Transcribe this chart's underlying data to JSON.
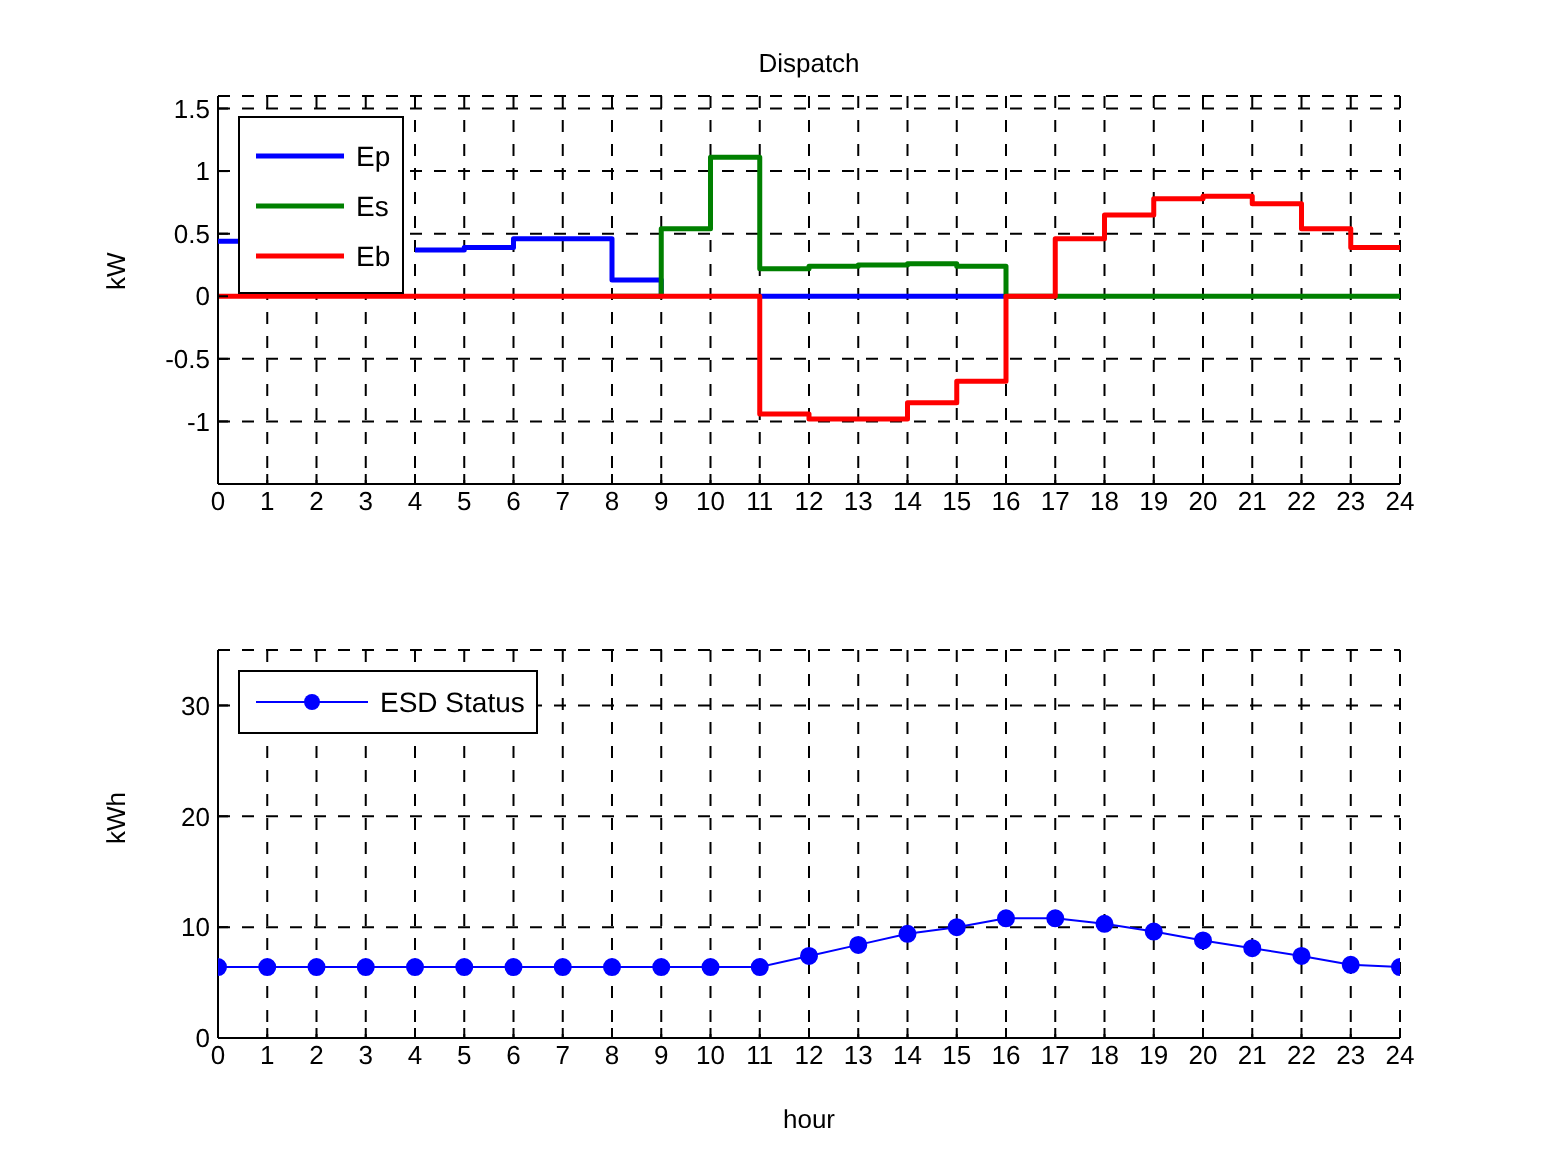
{
  "chart_data": [
    {
      "type": "step",
      "title": "Dispatch",
      "ylabel": "kW",
      "x": [
        0,
        1,
        2,
        3,
        4,
        5,
        6,
        7,
        8,
        9,
        10,
        11,
        12,
        13,
        14,
        15,
        16,
        17,
        18,
        19,
        20,
        21,
        22,
        23,
        24
      ],
      "series": [
        {
          "name": "Ep",
          "color": "#0000ff",
          "values": [
            0.44,
            null,
            null,
            null,
            0.37,
            0.39,
            0.46,
            0.46,
            0.13,
            0,
            null,
            0,
            0,
            0,
            0,
            0,
            0,
            null,
            null,
            null,
            null,
            null,
            null,
            null,
            null
          ]
        },
        {
          "name": "Es",
          "color": "#008000",
          "values": [
            null,
            null,
            null,
            null,
            null,
            null,
            null,
            null,
            0,
            0.54,
            1.11,
            0.22,
            0.24,
            0.25,
            0.26,
            0.24,
            0,
            0,
            0,
            0,
            0,
            0,
            0,
            0,
            0
          ]
        },
        {
          "name": "Eb",
          "color": "#ff0000",
          "values": [
            0,
            0,
            0,
            0,
            0,
            0,
            0,
            0,
            0,
            0,
            0,
            -0.94,
            -0.98,
            -0.98,
            -0.85,
            -0.68,
            0,
            0.46,
            0.65,
            0.78,
            0.8,
            0.74,
            0.54,
            0.39,
            0.39
          ]
        }
      ],
      "xlim": [
        0,
        24
      ],
      "xticks": [
        0,
        1,
        2,
        3,
        4,
        5,
        6,
        7,
        8,
        9,
        10,
        11,
        12,
        13,
        14,
        15,
        16,
        17,
        18,
        19,
        20,
        21,
        22,
        23,
        24
      ],
      "ylim": [
        -1.5,
        1.6
      ],
      "yticks": [
        -1,
        -0.5,
        0,
        0.5,
        1,
        1.5
      ],
      "grid": true,
      "legend": "top left",
      "line_style": "solid"
    },
    {
      "type": "line",
      "xlabel": "hour",
      "ylabel": "kWh",
      "x": [
        0,
        1,
        2,
        3,
        4,
        5,
        6,
        7,
        8,
        9,
        10,
        11,
        12,
        13,
        14,
        15,
        16,
        17,
        18,
        19,
        20,
        21,
        22,
        23,
        24
      ],
      "series": [
        {
          "name": "ESD Status",
          "color": "#0000ff",
          "values": [
            6.4,
            6.4,
            6.4,
            6.4,
            6.4,
            6.4,
            6.4,
            6.4,
            6.4,
            6.4,
            6.4,
            6.4,
            7.4,
            8.4,
            9.4,
            10.0,
            10.8,
            10.8,
            10.3,
            9.6,
            8.8,
            8.1,
            7.4,
            6.6,
            6.4
          ]
        }
      ],
      "xlim": [
        0,
        24
      ],
      "xticks": [
        0,
        1,
        2,
        3,
        4,
        5,
        6,
        7,
        8,
        9,
        10,
        11,
        12,
        13,
        14,
        15,
        16,
        17,
        18,
        19,
        20,
        21,
        22,
        23,
        24
      ],
      "ylim": [
        0,
        35
      ],
      "yticks": [
        0,
        10,
        20,
        30
      ],
      "grid": true,
      "legend": "top left",
      "marker": "circle",
      "line_style": "solid"
    }
  ]
}
